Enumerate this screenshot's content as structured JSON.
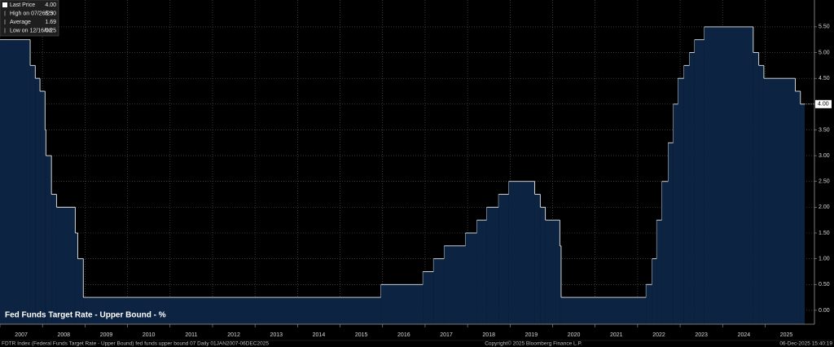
{
  "chart_data": {
    "type": "step-area",
    "title": "Fed Funds Target Rate - Upper Bound - %",
    "x": [
      2007.0,
      2007.71,
      2007.83,
      2007.94,
      2008.06,
      2008.08,
      2008.21,
      2008.33,
      2008.77,
      2008.83,
      2008.96,
      2015.96,
      2016.95,
      2017.2,
      2017.45,
      2017.95,
      2018.22,
      2018.45,
      2018.73,
      2018.97,
      2019.58,
      2019.71,
      2019.83,
      2020.17,
      2020.2,
      2022.2,
      2022.34,
      2022.45,
      2022.57,
      2022.72,
      2022.84,
      2022.95,
      2023.09,
      2023.22,
      2023.34,
      2023.57,
      2024.72,
      2024.85,
      2024.97,
      2025.71,
      2025.83,
      2025.93
    ],
    "values": [
      5.25,
      4.75,
      4.5,
      4.25,
      3.5,
      3.0,
      2.25,
      2.0,
      1.5,
      1.0,
      0.25,
      0.5,
      0.75,
      1.0,
      1.25,
      1.5,
      1.75,
      2.0,
      2.25,
      2.5,
      2.25,
      2.0,
      1.75,
      1.25,
      0.25,
      0.5,
      1.0,
      1.75,
      2.5,
      3.25,
      4.0,
      4.5,
      4.75,
      5.0,
      5.25,
      5.5,
      5.0,
      4.75,
      4.5,
      4.25,
      4.0,
      4.0
    ],
    "fill_color": "#0c2442",
    "line_color": "#e6e6e6",
    "xlim": [
      2007,
      2026.16
    ],
    "xticks": [
      2007,
      2008,
      2009,
      2010,
      2011,
      2012,
      2013,
      2014,
      2015,
      2016,
      2017,
      2018,
      2019,
      2020,
      2021,
      2022,
      2023,
      2024,
      2025
    ],
    "ylim": [
      -0.27,
      6.02
    ],
    "yticks": [
      {
        "value": 0,
        "label": "0.00"
      },
      {
        "value": 0.5,
        "label": "0.50"
      },
      {
        "value": 1,
        "label": "1.00"
      },
      {
        "value": 1.5,
        "label": "1.50"
      },
      {
        "value": 2,
        "label": "2.00"
      },
      {
        "value": 2.5,
        "label": "2.50"
      },
      {
        "value": 3,
        "label": "3.00"
      },
      {
        "value": 3.5,
        "label": "3.50"
      },
      {
        "value": 4,
        "label": "4.00"
      },
      {
        "value": 4.5,
        "label": "4.50"
      },
      {
        "value": 5,
        "label": "5.00"
      },
      {
        "value": 5.5,
        "label": "5.50"
      }
    ],
    "grid": true,
    "last_price": {
      "value": 4,
      "label": "4.00"
    },
    "legend_items": [
      {
        "label": "Last Price",
        "value": "4.00"
      },
      {
        "label": "High on 07/26/23",
        "value": "5.50"
      },
      {
        "label": "Average",
        "value": "1.69"
      },
      {
        "label": "Low on 12/16/08",
        "value": "0.25"
      }
    ],
    "footer": {
      "description": "FDTR Index (Federal Funds Target Rate - Upper Bound) fed funds upper bound 07 Daily 01JAN2007-06DEC2025",
      "copyright": "Copyright© 2025 Bloomberg Finance L.P.",
      "timestamp": "06-Dec-2025 15:40:19"
    }
  }
}
